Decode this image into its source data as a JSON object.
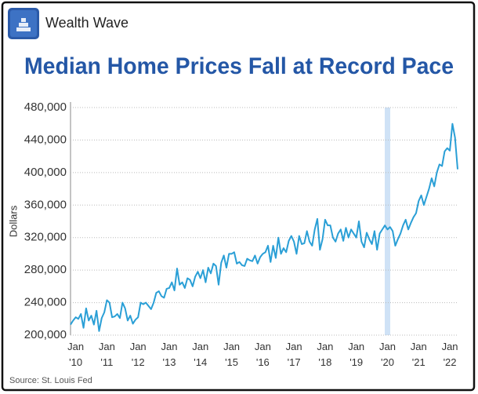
{
  "brand": "Wealth Wave",
  "chart_data": {
    "type": "line",
    "title": "Median Home Prices Fall at Record Pace",
    "y_label": "Dollars",
    "source": "Source: St. Louis Fed",
    "categories": [
      null,
      null,
      "Jan\n'10",
      null,
      null,
      null,
      null,
      null,
      null,
      null,
      null,
      null,
      null,
      null,
      "Jan\n'11",
      null,
      null,
      null,
      null,
      null,
      null,
      null,
      null,
      null,
      null,
      null,
      "Jan\n'12",
      null,
      null,
      null,
      null,
      null,
      null,
      null,
      null,
      null,
      null,
      null,
      "Jan\n'13",
      null,
      null,
      null,
      null,
      null,
      null,
      null,
      null,
      null,
      null,
      null,
      "Jan\n'14",
      null,
      null,
      null,
      null,
      null,
      null,
      null,
      null,
      null,
      null,
      null,
      "Jan\n'15",
      null,
      null,
      null,
      null,
      null,
      null,
      null,
      null,
      null,
      null,
      null,
      "Jan\n'16",
      null,
      null,
      null,
      null,
      null,
      null,
      null,
      null,
      null,
      null,
      null,
      "Jan\n'17",
      null,
      null,
      null,
      null,
      null,
      null,
      null,
      null,
      null,
      null,
      null,
      "Jan\n'18",
      null,
      null,
      null,
      null,
      null,
      null,
      null,
      null,
      null,
      null,
      null,
      "Jan\n'19",
      null,
      null,
      null,
      null,
      null,
      null,
      null,
      null,
      null,
      null,
      null,
      "Jan\n'20",
      null,
      null,
      null,
      null,
      null,
      null,
      null,
      null,
      null,
      null,
      null,
      "Jan\n'21",
      null,
      null,
      null,
      null,
      null,
      null,
      null,
      null,
      null,
      null,
      null,
      "Jan\n'22",
      null,
      null,
      null
    ],
    "values": [
      213000,
      218000,
      222000,
      220000,
      226000,
      209000,
      233000,
      218000,
      224000,
      213000,
      230000,
      205000,
      221000,
      228000,
      243000,
      240000,
      222000,
      223000,
      226000,
      221000,
      240000,
      233000,
      218000,
      224000,
      214000,
      219000,
      222000,
      240000,
      238000,
      240000,
      236000,
      232000,
      240000,
      252000,
      254000,
      248000,
      246000,
      257000,
      258000,
      265000,
      255000,
      282000,
      262000,
      265000,
      258000,
      270000,
      268000,
      260000,
      272000,
      278000,
      270000,
      280000,
      265000,
      283000,
      276000,
      288000,
      285000,
      262000,
      289000,
      298000,
      283000,
      300000,
      300000,
      302000,
      288000,
      290000,
      286000,
      285000,
      294000,
      292000,
      291000,
      298000,
      288000,
      296000,
      300000,
      302000,
      310000,
      290000,
      310000,
      295000,
      320000,
      300000,
      307000,
      302000,
      316000,
      322000,
      315000,
      300000,
      322000,
      312000,
      313000,
      328000,
      315000,
      310000,
      330000,
      343000,
      305000,
      318000,
      342000,
      335000,
      335000,
      320000,
      315000,
      325000,
      330000,
      316000,
      332000,
      320000,
      330000,
      325000,
      320000,
      340000,
      315000,
      308000,
      326000,
      318000,
      312000,
      328000,
      305000,
      325000,
      330000,
      335000,
      330000,
      333000,
      328000,
      310000,
      318000,
      325000,
      335000,
      342000,
      330000,
      338000,
      345000,
      350000,
      365000,
      372000,
      360000,
      370000,
      380000,
      393000,
      383000,
      400000,
      410000,
      408000,
      426000,
      430000,
      427000,
      460000,
      443000,
      404000
    ],
    "color": "#2a9fd6",
    "ylim": [
      200000,
      480000
    ],
    "yticks": [
      {
        "value": 200000,
        "label": "200,000"
      },
      {
        "value": 240000,
        "label": "240,000"
      },
      {
        "value": 280000,
        "label": "280,000"
      },
      {
        "value": 320000,
        "label": "320,000"
      },
      {
        "value": 360000,
        "label": "360,000"
      },
      {
        "value": 400000,
        "label": "400,000"
      },
      {
        "value": 440000,
        "label": "440,000"
      },
      {
        "value": 480000,
        "label": "480,000"
      }
    ],
    "grid": true
  }
}
